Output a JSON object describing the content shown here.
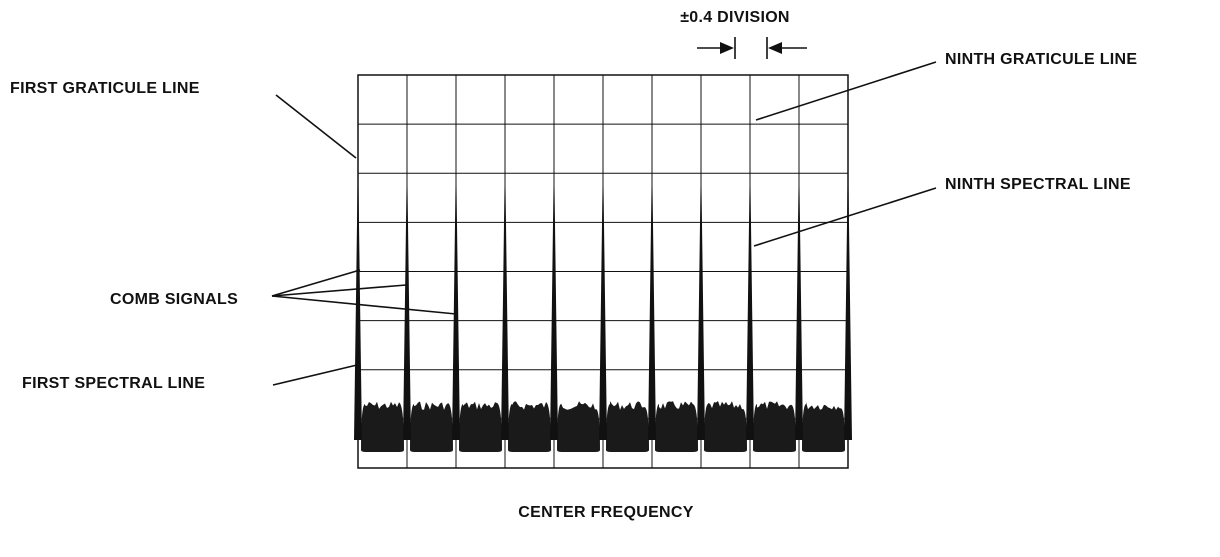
{
  "labels": {
    "division": "±0.4 DIVISION",
    "first_graticule": "FIRST GRATICULE LINE",
    "ninth_graticule": "NINTH GRATICULE LINE",
    "ninth_spectral": "NINTH SPECTRAL LINE",
    "comb_signals": "COMB SIGNALS",
    "first_spectral": "FIRST SPECTRAL LINE",
    "center_frequency": "CENTER FREQUENCY"
  }
}
